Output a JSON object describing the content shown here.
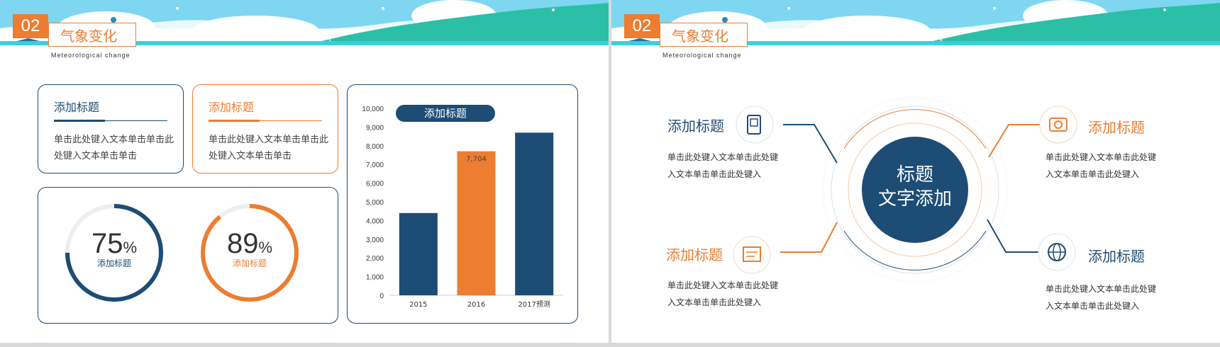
{
  "colors": {
    "navy": "#1d4c74",
    "orange": "#ec7d31",
    "teal": "#2bbfa8",
    "sky": "#7fd6f0"
  },
  "slide1": {
    "number": "02",
    "title": "气象变化",
    "subtitle": "Meteorological change",
    "card1": {
      "title": "添加标题",
      "body": "单击此处键入文本单击单击此处键入文本单击单击"
    },
    "card2": {
      "title": "添加标题",
      "body": "单击此处键入文本单击单击此处键入文本单击单击"
    },
    "donut1": {
      "value": "75",
      "unit": "%",
      "label": "添加标题",
      "fraction": 0.75
    },
    "donut2": {
      "value": "89",
      "unit": "%",
      "label": "添加标题",
      "fraction": 0.89
    },
    "chart_title": "添加标题"
  },
  "chart_data": {
    "type": "bar",
    "title": "添加标题",
    "categories": [
      "2015",
      "2016",
      "2017预测"
    ],
    "values": [
      4400,
      7704,
      8700
    ],
    "data_labels": [
      "",
      "7,704",
      ""
    ],
    "bar_colors": [
      "#1d4c74",
      "#ec7d31",
      "#1d4c74"
    ],
    "ylim": [
      0,
      10000
    ],
    "yticks": [
      "0",
      "1,000",
      "2,000",
      "3,000",
      "4,000",
      "5,000",
      "6,000",
      "7,000",
      "8,000",
      "9,000",
      "10,000"
    ],
    "xlabel": "",
    "ylabel": ""
  },
  "slide2": {
    "number": "02",
    "title": "气象变化",
    "subtitle": "Meteorological change",
    "center_line1": "标题",
    "center_line2": "文字添加",
    "items": [
      {
        "title": "添加标题",
        "desc1": "单击此处键入文本单击此处键",
        "desc2": "入文本单击单击此处键入"
      },
      {
        "title": "添加标题",
        "desc1": "单击此处键入文本单击此处键",
        "desc2": "入文本单击单击此处键入"
      },
      {
        "title": "添加标题",
        "desc1": "单击此处键入文本单击此处键",
        "desc2": "入文本单击单击此处键入"
      },
      {
        "title": "添加标题",
        "desc1": "单击此处键入文本单击此处键",
        "desc2": "入文本单击单击此处键入"
      }
    ]
  }
}
